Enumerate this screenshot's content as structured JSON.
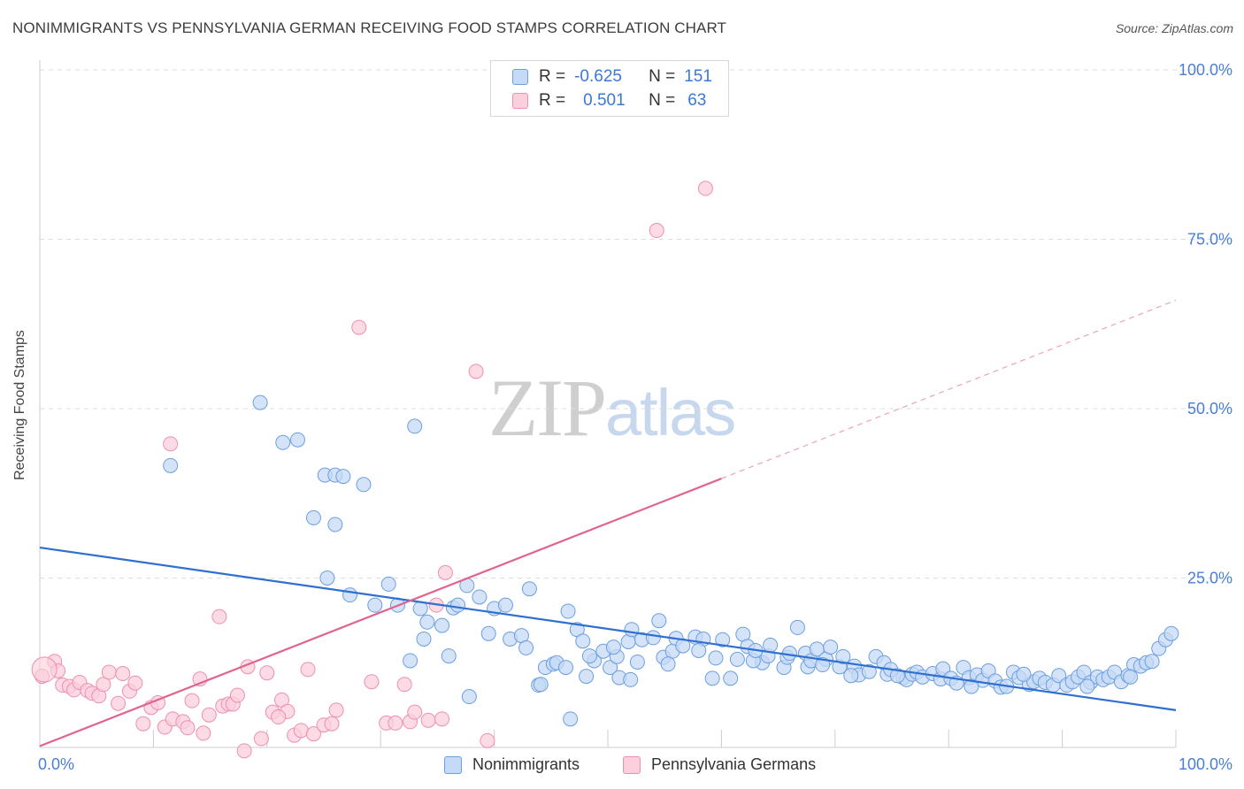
{
  "title": "NONIMMIGRANTS VS PENNSYLVANIA GERMAN RECEIVING FOOD STAMPS CORRELATION CHART",
  "source": "Source: ZipAtlas.com",
  "watermark": {
    "zip": "ZIP",
    "atlas": "atlas"
  },
  "legend_top": {
    "rows": [
      {
        "r_label": "R =",
        "r_value": "-0.625",
        "n_label": "N =",
        "n_value": "151",
        "color": "#7eaee8"
      },
      {
        "r_label": "R =",
        "r_value": "0.501",
        "n_label": "N =",
        "n_value": "63",
        "color": "#f29bb8"
      }
    ]
  },
  "colors": {
    "blue_fill": "#c5daf6",
    "blue_stroke": "#6b9fe0",
    "blue_line": "#2f6fd0",
    "pink_fill": "#fbcfdc",
    "pink_stroke": "#ee8fb0",
    "pink_line": "#e0648f",
    "tick_text": "#4a7fd4",
    "grid": "#dddddd"
  },
  "chart_data": {
    "type": "scatter",
    "title": "NONIMMIGRANTS VS PENNSYLVANIA GERMAN RECEIVING FOOD STAMPS CORRELATION CHART",
    "xlabel": "",
    "ylabel": "Receiving Food Stamps",
    "xlim": [
      0,
      100
    ],
    "ylim": [
      0,
      100
    ],
    "x_tick_labels": [
      "0.0%",
      "100.0%"
    ],
    "y_tick_labels": [
      "25.0%",
      "50.0%",
      "75.0%",
      "100.0%"
    ],
    "y_ticks": [
      25,
      50,
      75,
      100
    ],
    "grid": true,
    "legend_placement": "bottom",
    "series": [
      {
        "name": "Nonimmigrants",
        "color": "#6b9fe0",
        "trend": {
          "x": [
            0,
            100
          ],
          "y": [
            29.5,
            5.5
          ],
          "dashed_after": null
        },
        "points": [
          [
            11.5,
            41.6
          ],
          [
            19.4,
            50.9
          ],
          [
            21.4,
            45.0
          ],
          [
            22.7,
            45.4
          ],
          [
            24.1,
            33.9
          ],
          [
            25.1,
            40.2
          ],
          [
            26.0,
            40.2
          ],
          [
            26.7,
            40.0
          ],
          [
            26.0,
            32.9
          ],
          [
            28.5,
            38.8
          ],
          [
            33.0,
            47.4
          ],
          [
            25.3,
            25.0
          ],
          [
            27.3,
            22.5
          ],
          [
            29.5,
            21.0
          ],
          [
            30.7,
            24.1
          ],
          [
            31.5,
            21.0
          ],
          [
            33.8,
            16.0
          ],
          [
            34.1,
            18.5
          ],
          [
            35.4,
            18.0
          ],
          [
            36.4,
            20.6
          ],
          [
            36.8,
            21.0
          ],
          [
            37.6,
            23.9
          ],
          [
            36.0,
            13.5
          ],
          [
            32.6,
            12.8
          ],
          [
            37.8,
            7.5
          ],
          [
            38.7,
            22.2
          ],
          [
            40.0,
            20.5
          ],
          [
            39.5,
            16.8
          ],
          [
            41.0,
            21.0
          ],
          [
            41.4,
            16.0
          ],
          [
            42.4,
            16.5
          ],
          [
            43.1,
            23.4
          ],
          [
            43.9,
            9.2
          ],
          [
            44.1,
            9.3
          ],
          [
            44.5,
            11.8
          ],
          [
            45.2,
            12.3
          ],
          [
            45.5,
            12.5
          ],
          [
            46.3,
            11.8
          ],
          [
            46.5,
            20.1
          ],
          [
            46.7,
            4.2
          ],
          [
            47.3,
            17.4
          ],
          [
            47.8,
            15.7
          ],
          [
            48.1,
            10.5
          ],
          [
            48.8,
            12.8
          ],
          [
            48.4,
            13.5
          ],
          [
            49.6,
            14.2
          ],
          [
            50.2,
            11.8
          ],
          [
            50.8,
            13.4
          ],
          [
            51.0,
            10.3
          ],
          [
            51.8,
            15.6
          ],
          [
            52.1,
            17.4
          ],
          [
            52.6,
            12.6
          ],
          [
            53.0,
            15.9
          ],
          [
            54.0,
            16.2
          ],
          [
            54.5,
            18.7
          ],
          [
            54.9,
            13.3
          ],
          [
            55.7,
            14.2
          ],
          [
            56.0,
            16.1
          ],
          [
            56.6,
            15.0
          ],
          [
            57.7,
            16.3
          ],
          [
            58.4,
            16.0
          ],
          [
            59.2,
            10.2
          ],
          [
            59.5,
            13.2
          ],
          [
            60.1,
            15.9
          ],
          [
            60.8,
            10.2
          ],
          [
            61.4,
            13.0
          ],
          [
            61.9,
            16.7
          ],
          [
            62.3,
            14.9
          ],
          [
            63.6,
            12.5
          ],
          [
            64.1,
            13.5
          ],
          [
            64.3,
            15.1
          ],
          [
            65.5,
            11.8
          ],
          [
            65.8,
            13.3
          ],
          [
            66.7,
            17.7
          ],
          [
            67.4,
            13.9
          ],
          [
            67.6,
            11.9
          ],
          [
            67.9,
            12.8
          ],
          [
            68.4,
            14.5
          ],
          [
            69.2,
            13.0
          ],
          [
            69.6,
            14.8
          ],
          [
            70.4,
            11.9
          ],
          [
            70.7,
            13.4
          ],
          [
            71.7,
            12.0
          ],
          [
            72.1,
            10.7
          ],
          [
            73.0,
            11.2
          ],
          [
            73.6,
            13.4
          ],
          [
            74.3,
            12.5
          ],
          [
            74.6,
            10.8
          ],
          [
            74.9,
            11.5
          ],
          [
            76.0,
            10.3
          ],
          [
            76.3,
            10.0
          ],
          [
            76.8,
            10.8
          ],
          [
            77.2,
            11.1
          ],
          [
            77.7,
            10.4
          ],
          [
            78.6,
            10.9
          ],
          [
            79.3,
            10.1
          ],
          [
            79.5,
            11.6
          ],
          [
            80.2,
            10.2
          ],
          [
            81.3,
            11.8
          ],
          [
            81.8,
            10.3
          ],
          [
            82.5,
            10.7
          ],
          [
            83.0,
            9.9
          ],
          [
            83.5,
            11.3
          ],
          [
            84.1,
            9.8
          ],
          [
            84.6,
            8.9
          ],
          [
            85.1,
            9.0
          ],
          [
            85.7,
            11.1
          ],
          [
            86.2,
            10.3
          ],
          [
            87.1,
            9.3
          ],
          [
            87.5,
            9.7
          ],
          [
            88.0,
            10.2
          ],
          [
            88.5,
            9.6
          ],
          [
            89.2,
            9.2
          ],
          [
            89.7,
            10.6
          ],
          [
            90.4,
            9.2
          ],
          [
            90.9,
            9.7
          ],
          [
            91.4,
            10.4
          ],
          [
            91.9,
            11.1
          ],
          [
            92.5,
            9.6
          ],
          [
            93.1,
            10.4
          ],
          [
            93.6,
            10.0
          ],
          [
            94.1,
            10.4
          ],
          [
            94.6,
            11.1
          ],
          [
            95.2,
            9.7
          ],
          [
            95.8,
            10.6
          ],
          [
            96.3,
            12.2
          ],
          [
            96.9,
            12.0
          ],
          [
            97.4,
            12.5
          ],
          [
            97.9,
            12.7
          ],
          [
            98.5,
            14.6
          ],
          [
            99.1,
            15.9
          ],
          [
            99.6,
            16.8
          ],
          [
            52.0,
            10.0
          ],
          [
            58.0,
            14.3
          ],
          [
            62.8,
            12.8
          ],
          [
            66.0,
            13.9
          ],
          [
            68.9,
            12.2
          ],
          [
            71.4,
            10.6
          ],
          [
            80.7,
            9.5
          ],
          [
            86.6,
            10.8
          ],
          [
            92.2,
            9.0
          ],
          [
            96.0,
            10.4
          ],
          [
            33.5,
            20.5
          ],
          [
            42.8,
            14.7
          ],
          [
            50.5,
            14.8
          ],
          [
            55.3,
            12.3
          ],
          [
            63.0,
            14.3
          ],
          [
            75.5,
            10.6
          ],
          [
            82.0,
            9.0
          ]
        ]
      },
      {
        "name": "Pennsylvania Germans",
        "color": "#ee8fb0",
        "trend": {
          "x": [
            0,
            100
          ],
          "y": [
            0.2,
            66.0
          ],
          "solid_until_x": 60
        },
        "points": [
          [
            0.2,
            10.5
          ],
          [
            1.3,
            12.7
          ],
          [
            1.6,
            11.3
          ],
          [
            2.0,
            9.2
          ],
          [
            2.6,
            9.0
          ],
          [
            3.0,
            8.5
          ],
          [
            3.5,
            9.6
          ],
          [
            4.2,
            8.4
          ],
          [
            4.6,
            8.0
          ],
          [
            5.2,
            7.6
          ],
          [
            5.6,
            9.3
          ],
          [
            6.1,
            11.1
          ],
          [
            6.9,
            6.5
          ],
          [
            7.3,
            10.9
          ],
          [
            7.9,
            8.3
          ],
          [
            8.4,
            9.5
          ],
          [
            9.1,
            3.5
          ],
          [
            9.8,
            5.9
          ],
          [
            10.4,
            6.6
          ],
          [
            11.0,
            3.0
          ],
          [
            11.5,
            44.8
          ],
          [
            11.7,
            4.2
          ],
          [
            12.6,
            3.8
          ],
          [
            13.0,
            2.9
          ],
          [
            13.4,
            6.9
          ],
          [
            14.1,
            10.1
          ],
          [
            14.4,
            2.1
          ],
          [
            14.9,
            4.8
          ],
          [
            15.8,
            19.3
          ],
          [
            16.1,
            6.1
          ],
          [
            16.6,
            6.4
          ],
          [
            17.0,
            6.4
          ],
          [
            17.4,
            7.7
          ],
          [
            18.3,
            11.9
          ],
          [
            18.0,
            -0.5
          ],
          [
            19.5,
            1.3
          ],
          [
            20.0,
            11.0
          ],
          [
            20.5,
            5.2
          ],
          [
            21.3,
            7.0
          ],
          [
            21.8,
            5.3
          ],
          [
            22.4,
            1.8
          ],
          [
            23.0,
            2.5
          ],
          [
            23.6,
            11.5
          ],
          [
            24.1,
            2.0
          ],
          [
            25.0,
            3.3
          ],
          [
            25.7,
            3.5
          ],
          [
            26.1,
            5.5
          ],
          [
            28.1,
            62.0
          ],
          [
            30.5,
            3.6
          ],
          [
            31.3,
            3.6
          ],
          [
            32.1,
            9.3
          ],
          [
            32.6,
            3.8
          ],
          [
            33.0,
            5.2
          ],
          [
            34.2,
            4.0
          ],
          [
            34.9,
            21.0
          ],
          [
            35.4,
            4.2
          ],
          [
            35.7,
            25.8
          ],
          [
            38.4,
            55.5
          ],
          [
            39.4,
            1.0
          ],
          [
            54.3,
            76.3
          ],
          [
            58.6,
            82.5
          ],
          [
            29.2,
            9.7
          ],
          [
            21.0,
            4.5
          ]
        ]
      }
    ]
  }
}
